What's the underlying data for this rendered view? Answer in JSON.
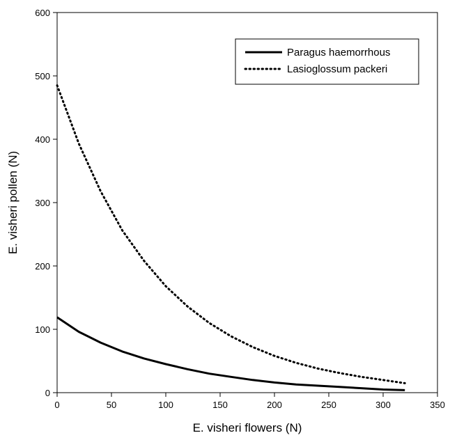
{
  "chart_data": {
    "type": "line",
    "title": "",
    "xlabel": "E. visheri flowers (N)",
    "ylabel": "E. visheri pollen (N)",
    "xlim": [
      0,
      350
    ],
    "ylim": [
      0,
      600
    ],
    "xticks": [
      0,
      50,
      100,
      150,
      200,
      250,
      300,
      350
    ],
    "yticks": [
      0,
      100,
      200,
      300,
      400,
      500,
      600
    ],
    "grid": false,
    "legend_position": "top-right",
    "series": [
      {
        "name": "Paragus haemorrhous",
        "style": "solid",
        "color": "#000000",
        "x": [
          0,
          20,
          40,
          60,
          80,
          100,
          120,
          140,
          160,
          180,
          200,
          220,
          240,
          260,
          280,
          300,
          320
        ],
        "y": [
          119,
          96,
          79,
          65,
          54,
          45,
          37,
          30,
          25,
          20,
          16,
          13,
          11,
          9,
          7,
          5,
          4
        ]
      },
      {
        "name": "Lasioglossum packeri",
        "style": "dotted",
        "color": "#000000",
        "x": [
          0,
          20,
          40,
          60,
          80,
          100,
          120,
          140,
          160,
          180,
          200,
          220,
          240,
          260,
          280,
          300,
          320
        ],
        "y": [
          485,
          393,
          318,
          256,
          208,
          168,
          136,
          110,
          89,
          72,
          58,
          47,
          38,
          31,
          25,
          20,
          15
        ]
      }
    ]
  }
}
